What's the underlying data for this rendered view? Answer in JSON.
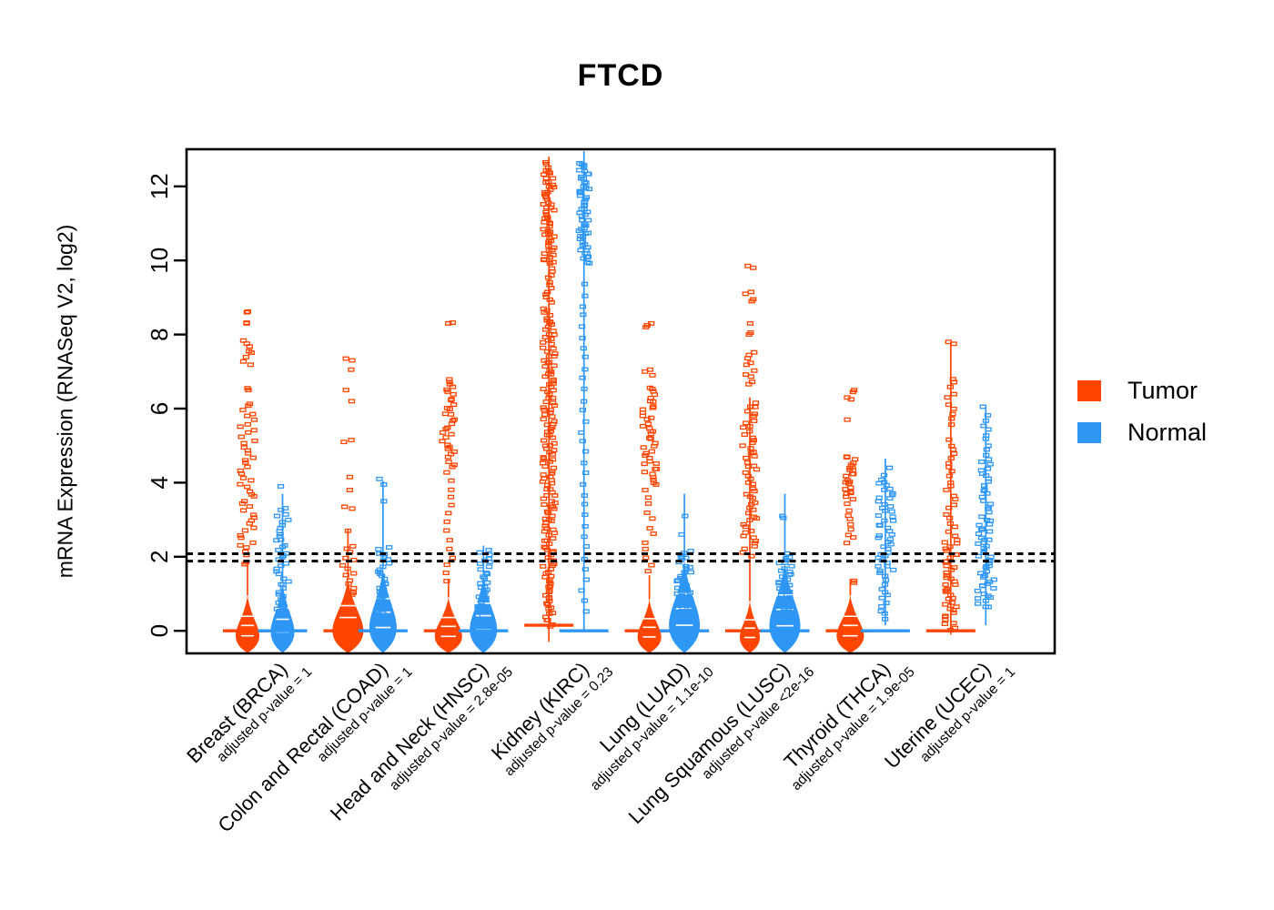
{
  "title": "FTCD",
  "legend": {
    "items": [
      {
        "label": "Tumor",
        "color": "#FF4500"
      },
      {
        "label": "Normal",
        "color": "#2E97F5"
      }
    ]
  },
  "chart_data": {
    "type": "scatter",
    "variant": "beeswarm-strip-violin",
    "title": "FTCD",
    "xlabel": "",
    "ylabel": "mRNA Expression (RNASeq V2, log2)",
    "ylim": [
      -1,
      13
    ],
    "yticks": [
      0,
      2,
      4,
      6,
      8,
      10,
      12
    ],
    "grid": false,
    "legend_position": "right",
    "threshold_lines": [
      2.08,
      1.88
    ],
    "colors": {
      "tumor": "#FF4500",
      "normal": "#2E97F5"
    },
    "groups": [
      {
        "label": "Breast (BRCA)",
        "pvalue_label": "adjusted p-value = 1",
        "tumor": {
          "median": 0,
          "violin": {
            "y0": -0.6,
            "y1": 0.95,
            "w": 13
          },
          "stem": [
            0.95,
            1.85
          ],
          "segments": [
            {
              "y0": 2.0,
              "y1": 6.2,
              "n": 46,
              "w": 8
            },
            {
              "y0": 7.15,
              "y1": 7.9,
              "n": 8,
              "w": 5
            }
          ],
          "outliers": [
            8.6,
            8.62,
            8.3,
            8.32,
            6.55,
            6.5,
            1.85,
            1.8
          ]
        },
        "normal": {
          "median": 0,
          "violin": {
            "y0": -0.6,
            "y1": 1.3,
            "w": 13
          },
          "stem": [
            1.3,
            3.7
          ],
          "segments": [
            {
              "y0": 0.5,
              "y1": 3.35,
              "n": 38,
              "w": 7
            }
          ],
          "outliers": [
            3.9
          ]
        }
      },
      {
        "label": "Colon and Rectal (COAD)",
        "pvalue_label": "adjusted p-value = 1",
        "tumor": {
          "median": 0,
          "violin": {
            "y0": -0.6,
            "y1": 1.4,
            "w": 17
          },
          "stem": [
            1.4,
            2.75
          ],
          "segments": [
            {
              "y0": 0.9,
              "y1": 2.35,
              "n": 14,
              "w": 7
            }
          ],
          "outliers": [
            7.35,
            7.3,
            7.05,
            6.5,
            6.2,
            5.15,
            5.1,
            4.15,
            3.8,
            3.35,
            3.3,
            2.7
          ]
        },
        "normal": {
          "median": 0,
          "violin": {
            "y0": -0.6,
            "y1": 1.7,
            "w": 15
          },
          "stem": [
            1.7,
            4.05
          ],
          "segments": [
            {
              "y0": 0.4,
              "y1": 2.3,
              "n": 26,
              "w": 7
            }
          ],
          "outliers": [
            4.1,
            3.95,
            3.5
          ]
        }
      },
      {
        "label": "Head and Neck (HNSC)",
        "pvalue_label": "adjusted p-value = 2.8e-05",
        "tumor": {
          "median": 0,
          "violin": {
            "y0": -0.6,
            "y1": 0.9,
            "w": 15
          },
          "stem": [
            0.9,
            1.4
          ],
          "segments": [
            {
              "y0": 4.4,
              "y1": 6.85,
              "n": 32,
              "w": 7
            },
            {
              "y0": 1.2,
              "y1": 4.4,
              "n": 14,
              "w": 5
            }
          ],
          "outliers": [
            8.3,
            8.32
          ]
        },
        "normal": {
          "median": 0,
          "violin": {
            "y0": -0.6,
            "y1": 1.5,
            "w": 15
          },
          "stem": [
            1.5,
            2.3
          ],
          "segments": [
            {
              "y0": 0.4,
              "y1": 2.2,
              "n": 28,
              "w": 7
            }
          ],
          "outliers": []
        }
      },
      {
        "label": "Kidney (KIRC)",
        "pvalue_label": "adjusted p-value = 0.23",
        "tumor": {
          "median": 0.15,
          "stem": [
            -0.3,
            12.8
          ],
          "segments": [
            {
              "y0": 0.1,
              "y1": 1.2,
              "n": 18,
              "w": 6
            },
            {
              "y0": 1.2,
              "y1": 8.7,
              "n": 140,
              "w": 7
            },
            {
              "y0": 8.8,
              "y1": 9.8,
              "n": 12,
              "w": 4
            },
            {
              "y0": 9.9,
              "y1": 12.5,
              "n": 55,
              "w": 6
            }
          ],
          "outliers": [
            12.6,
            12.65
          ]
        },
        "normal": {
          "median": 0,
          "stem": [
            0,
            12.95
          ],
          "segments": [
            {
              "y0": 0.4,
              "y1": 9.5,
              "n": 32,
              "w": 3
            },
            {
              "y0": 9.9,
              "y1": 12.68,
              "n": 58,
              "w": 6
            }
          ],
          "outliers": []
        }
      },
      {
        "label": "Lung (LUAD)",
        "pvalue_label": "adjusted p-value = 1.1e-10",
        "tumor": {
          "median": 0,
          "violin": {
            "y0": -0.6,
            "y1": 0.85,
            "w": 13
          },
          "stem": [
            0.85,
            1.5
          ],
          "segments": [
            {
              "y0": 3.9,
              "y1": 6.6,
              "n": 40,
              "w": 8
            },
            {
              "y0": 1.5,
              "y1": 3.9,
              "n": 12,
              "w": 5
            }
          ],
          "outliers": [
            8.3,
            8.25,
            8.2,
            7.05,
            7.0,
            6.9
          ]
        },
        "normal": {
          "median": 0,
          "violin": {
            "y0": -0.6,
            "y1": 1.9,
            "w": 17
          },
          "stem": [
            1.9,
            3.7
          ],
          "segments": [
            {
              "y0": 0.4,
              "y1": 2.2,
              "n": 32,
              "w": 8
            }
          ],
          "outliers": [
            2.6,
            3.1
          ]
        }
      },
      {
        "label": "Lung Squamous (LUSC)",
        "pvalue_label": "adjusted p-value <2e-16",
        "tumor": {
          "median": 0,
          "violin": {
            "y0": -0.6,
            "y1": 0.8,
            "w": 11
          },
          "stem": [
            0.8,
            6.3
          ],
          "segments": [
            {
              "y0": 2.0,
              "y1": 6.2,
              "n": 55,
              "w": 8
            },
            {
              "y0": 6.6,
              "y1": 7.6,
              "n": 10,
              "w": 5
            }
          ],
          "outliers": [
            9.85,
            9.8,
            9.15,
            9.1,
            8.95,
            8.9,
            8.3,
            8.05,
            8.0
          ]
        },
        "normal": {
          "median": 0,
          "violin": {
            "y0": -0.6,
            "y1": 1.85,
            "w": 17
          },
          "stem": [
            1.85,
            3.7
          ],
          "segments": [
            {
              "y0": 0.4,
              "y1": 2.1,
              "n": 32,
              "w": 8
            }
          ],
          "outliers": [
            3.1,
            3.05
          ]
        }
      },
      {
        "label": "Thyroid (THCA)",
        "pvalue_label": "adjusted p-value = 1.9e-05",
        "tumor": {
          "median": 0,
          "violin": {
            "y0": -0.6,
            "y1": 0.95,
            "w": 15
          },
          "stem": [
            0.95,
            1.4
          ],
          "segments": [
            {
              "y0": 3.6,
              "y1": 4.75,
              "n": 22,
              "w": 6
            },
            {
              "y0": 2.3,
              "y1": 3.6,
              "n": 10,
              "w": 4
            }
          ],
          "outliers": [
            6.5,
            6.45,
            6.3,
            6.25,
            5.7,
            1.35,
            1.3
          ]
        },
        "normal": {
          "median": 0,
          "stem": [
            0.15,
            4.65
          ],
          "segments": [
            {
              "y0": 1.5,
              "y1": 4.2,
              "n": 44,
              "w": 9
            },
            {
              "y0": 0.3,
              "y1": 1.5,
              "n": 12,
              "w": 5
            }
          ],
          "outliers": [
            4.4
          ]
        }
      },
      {
        "label": "Uterine (UCEC)",
        "pvalue_label": "adjusted p-value = 1",
        "tumor": {
          "median": 0,
          "stem": [
            -0.1,
            7.8
          ],
          "segments": [
            {
              "y0": 0.0,
              "y1": 2.5,
              "n": 40,
              "w": 7
            },
            {
              "y0": 2.5,
              "y1": 5.2,
              "n": 22,
              "w": 5
            },
            {
              "y0": 5.5,
              "y1": 6.9,
              "n": 10,
              "w": 4
            }
          ],
          "outliers": [
            7.75,
            7.8
          ]
        },
        "normal": {
          "stem": [
            0.15,
            6.1
          ],
          "segments": [
            {
              "y0": 0.6,
              "y1": 2.9,
              "n": 42,
              "w": 9
            },
            {
              "y0": 2.9,
              "y1": 4.7,
              "n": 22,
              "w": 6
            },
            {
              "y0": 4.7,
              "y1": 5.9,
              "n": 9,
              "w": 3
            }
          ],
          "outliers": [
            6.05
          ]
        }
      }
    ]
  }
}
